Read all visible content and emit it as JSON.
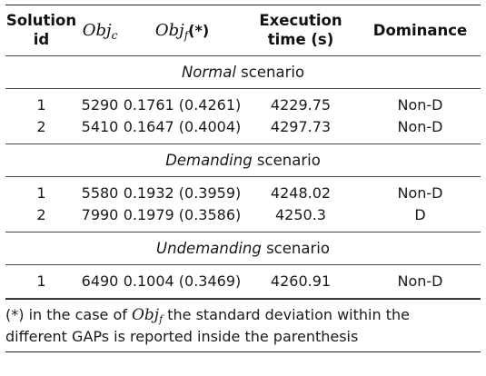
{
  "header": {
    "solution_id": [
      "Solution",
      "id"
    ],
    "obj_c": {
      "base": "Obj",
      "sub": "c"
    },
    "obj_f": {
      "base": "Obj",
      "sub": "f",
      "suffix": "(*)"
    },
    "execution_time": [
      "Execution",
      "time (s)"
    ],
    "dominance": "Dominance"
  },
  "scenarios": [
    {
      "name_em": "Normal",
      "name_rest": " scenario",
      "rows": [
        {
          "id": "1",
          "obj_c": "5290",
          "obj_f": "0.1761 (0.4261)",
          "time": "4229.75",
          "dominance": "Non-D"
        },
        {
          "id": "2",
          "obj_c": "5410",
          "obj_f": "0.1647 (0.4004)",
          "time": "4297.73",
          "dominance": "Non-D"
        }
      ]
    },
    {
      "name_em": "Demanding",
      "name_rest": " scenario",
      "rows": [
        {
          "id": "1",
          "obj_c": "5580",
          "obj_f": "0.1932 (0.3959)",
          "time": "4248.02",
          "dominance": "Non-D"
        },
        {
          "id": "2",
          "obj_c": "7990",
          "obj_f": "0.1979 (0.3586)",
          "time": "4250.3",
          "dominance": "D"
        }
      ]
    },
    {
      "name_em": "Undemanding",
      "name_rest": " scenario",
      "rows": [
        {
          "id": "1",
          "obj_c": "6490",
          "obj_f": "0.1004 (0.3469)",
          "time": "4260.91",
          "dominance": "Non-D"
        }
      ]
    }
  ],
  "note": {
    "prefix": "(*) in the case of ",
    "math_base": "Obj",
    "math_sub": "f",
    "line1_rest": " the standard deviation within the",
    "line2": "different GAPs is reported inside the parenthesis"
  }
}
